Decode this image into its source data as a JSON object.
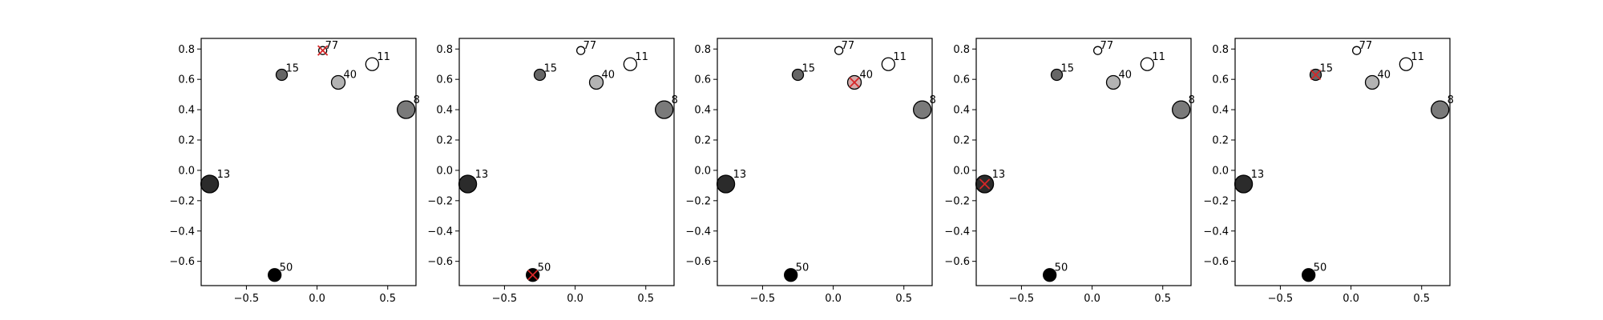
{
  "chart_data": [
    {
      "type": "scatter",
      "xlim": [
        -0.82,
        0.7
      ],
      "ylim": [
        -0.76,
        0.87
      ],
      "xticks": [
        -0.5,
        0.0,
        0.5
      ],
      "xtick_labels": [
        "−0.5",
        "0.0",
        "0.5"
      ],
      "yticks": [
        -0.6,
        -0.4,
        -0.2,
        0.0,
        0.2,
        0.4,
        0.6,
        0.8
      ],
      "ytick_labels": [
        "−0.6",
        "−0.4",
        "−0.2",
        "0.0",
        "0.2",
        "0.4",
        "0.6",
        "0.8"
      ],
      "points": [
        {
          "label": "77",
          "x": 0.04,
          "y": 0.79,
          "fill": "#ffffff",
          "size": 5
        },
        {
          "label": "11",
          "x": 0.39,
          "y": 0.7,
          "fill": "#ffffff",
          "size": 8
        },
        {
          "label": "15",
          "x": -0.25,
          "y": 0.63,
          "fill": "#666666",
          "size": 7
        },
        {
          "label": "40",
          "x": 0.15,
          "y": 0.58,
          "fill": "#b3b3b3",
          "size": 8.5
        },
        {
          "label": "8",
          "x": 0.63,
          "y": 0.4,
          "fill": "#7a7a7a",
          "size": 11
        },
        {
          "label": "13",
          "x": -0.76,
          "y": -0.09,
          "fill": "#2b2b2b",
          "size": 11
        },
        {
          "label": "50",
          "x": -0.3,
          "y": -0.69,
          "fill": "#000000",
          "size": 8
        }
      ],
      "highlight": "77",
      "marker_color": "#d62728"
    },
    {
      "type": "scatter",
      "xlim": [
        -0.82,
        0.7
      ],
      "ylim": [
        -0.76,
        0.87
      ],
      "xticks": [
        -0.5,
        0.0,
        0.5
      ],
      "xtick_labels": [
        "−0.5",
        "0.0",
        "0.5"
      ],
      "yticks": [
        -0.6,
        -0.4,
        -0.2,
        0.0,
        0.2,
        0.4,
        0.6,
        0.8
      ],
      "ytick_labels": [
        "−0.6",
        "−0.4",
        "−0.2",
        "0.0",
        "0.2",
        "0.4",
        "0.6",
        "0.8"
      ],
      "points": [
        {
          "label": "77",
          "x": 0.04,
          "y": 0.79,
          "fill": "#ffffff",
          "size": 5
        },
        {
          "label": "11",
          "x": 0.39,
          "y": 0.7,
          "fill": "#ffffff",
          "size": 8
        },
        {
          "label": "15",
          "x": -0.25,
          "y": 0.63,
          "fill": "#666666",
          "size": 7
        },
        {
          "label": "40",
          "x": 0.15,
          "y": 0.58,
          "fill": "#b3b3b3",
          "size": 8.5
        },
        {
          "label": "8",
          "x": 0.63,
          "y": 0.4,
          "fill": "#7a7a7a",
          "size": 11
        },
        {
          "label": "13",
          "x": -0.76,
          "y": -0.09,
          "fill": "#2b2b2b",
          "size": 11
        },
        {
          "label": "50",
          "x": -0.3,
          "y": -0.69,
          "fill": "#000000",
          "size": 8
        }
      ],
      "highlight": "50",
      "marker_color": "#d62728"
    },
    {
      "type": "scatter",
      "xlim": [
        -0.82,
        0.7
      ],
      "ylim": [
        -0.76,
        0.87
      ],
      "xticks": [
        -0.5,
        0.0,
        0.5
      ],
      "xtick_labels": [
        "−0.5",
        "0.0",
        "0.5"
      ],
      "yticks": [
        -0.6,
        -0.4,
        -0.2,
        0.0,
        0.2,
        0.4,
        0.6,
        0.8
      ],
      "ytick_labels": [
        "−0.6",
        "−0.4",
        "−0.2",
        "0.0",
        "0.2",
        "0.4",
        "0.6",
        "0.8"
      ],
      "points": [
        {
          "label": "77",
          "x": 0.04,
          "y": 0.79,
          "fill": "#ffffff",
          "size": 5
        },
        {
          "label": "11",
          "x": 0.39,
          "y": 0.7,
          "fill": "#ffffff",
          "size": 8
        },
        {
          "label": "15",
          "x": -0.25,
          "y": 0.63,
          "fill": "#666666",
          "size": 7
        },
        {
          "label": "40",
          "x": 0.15,
          "y": 0.58,
          "fill": "#b3b3b3",
          "size": 8.5
        },
        {
          "label": "8",
          "x": 0.63,
          "y": 0.4,
          "fill": "#7a7a7a",
          "size": 11
        },
        {
          "label": "13",
          "x": -0.76,
          "y": -0.09,
          "fill": "#2b2b2b",
          "size": 11
        },
        {
          "label": "50",
          "x": -0.3,
          "y": -0.69,
          "fill": "#000000",
          "size": 8
        }
      ],
      "highlight": "40",
      "marker_color": "#d62728"
    },
    {
      "type": "scatter",
      "xlim": [
        -0.82,
        0.7
      ],
      "ylim": [
        -0.76,
        0.87
      ],
      "xticks": [
        -0.5,
        0.0,
        0.5
      ],
      "xtick_labels": [
        "−0.5",
        "0.0",
        "0.5"
      ],
      "yticks": [
        -0.6,
        -0.4,
        -0.2,
        0.0,
        0.2,
        0.4,
        0.6,
        0.8
      ],
      "ytick_labels": [
        "−0.6",
        "−0.4",
        "−0.2",
        "0.0",
        "0.2",
        "0.4",
        "0.6",
        "0.8"
      ],
      "points": [
        {
          "label": "77",
          "x": 0.04,
          "y": 0.79,
          "fill": "#ffffff",
          "size": 5
        },
        {
          "label": "11",
          "x": 0.39,
          "y": 0.7,
          "fill": "#ffffff",
          "size": 8
        },
        {
          "label": "15",
          "x": -0.25,
          "y": 0.63,
          "fill": "#666666",
          "size": 7
        },
        {
          "label": "40",
          "x": 0.15,
          "y": 0.58,
          "fill": "#b3b3b3",
          "size": 8.5
        },
        {
          "label": "8",
          "x": 0.63,
          "y": 0.4,
          "fill": "#7a7a7a",
          "size": 11
        },
        {
          "label": "13",
          "x": -0.76,
          "y": -0.09,
          "fill": "#2b2b2b",
          "size": 11
        },
        {
          "label": "50",
          "x": -0.3,
          "y": -0.69,
          "fill": "#000000",
          "size": 8
        }
      ],
      "highlight": "13",
      "marker_color": "#d62728"
    },
    {
      "type": "scatter",
      "xlim": [
        -0.82,
        0.7
      ],
      "ylim": [
        -0.76,
        0.87
      ],
      "xticks": [
        -0.5,
        0.0,
        0.5
      ],
      "xtick_labels": [
        "−0.5",
        "0.0",
        "0.5"
      ],
      "yticks": [
        -0.6,
        -0.4,
        -0.2,
        0.0,
        0.2,
        0.4,
        0.6,
        0.8
      ],
      "ytick_labels": [
        "−0.6",
        "−0.4",
        "−0.2",
        "0.0",
        "0.2",
        "0.4",
        "0.6",
        "0.8"
      ],
      "points": [
        {
          "label": "77",
          "x": 0.04,
          "y": 0.79,
          "fill": "#ffffff",
          "size": 5
        },
        {
          "label": "11",
          "x": 0.39,
          "y": 0.7,
          "fill": "#ffffff",
          "size": 8
        },
        {
          "label": "15",
          "x": -0.25,
          "y": 0.63,
          "fill": "#666666",
          "size": 7
        },
        {
          "label": "40",
          "x": 0.15,
          "y": 0.58,
          "fill": "#b3b3b3",
          "size": 8.5
        },
        {
          "label": "8",
          "x": 0.63,
          "y": 0.4,
          "fill": "#7a7a7a",
          "size": 11
        },
        {
          "label": "13",
          "x": -0.76,
          "y": -0.09,
          "fill": "#2b2b2b",
          "size": 11
        },
        {
          "label": "50",
          "x": -0.3,
          "y": -0.69,
          "fill": "#000000",
          "size": 8
        }
      ],
      "highlight": "15",
      "marker_color": "#d62728"
    }
  ]
}
